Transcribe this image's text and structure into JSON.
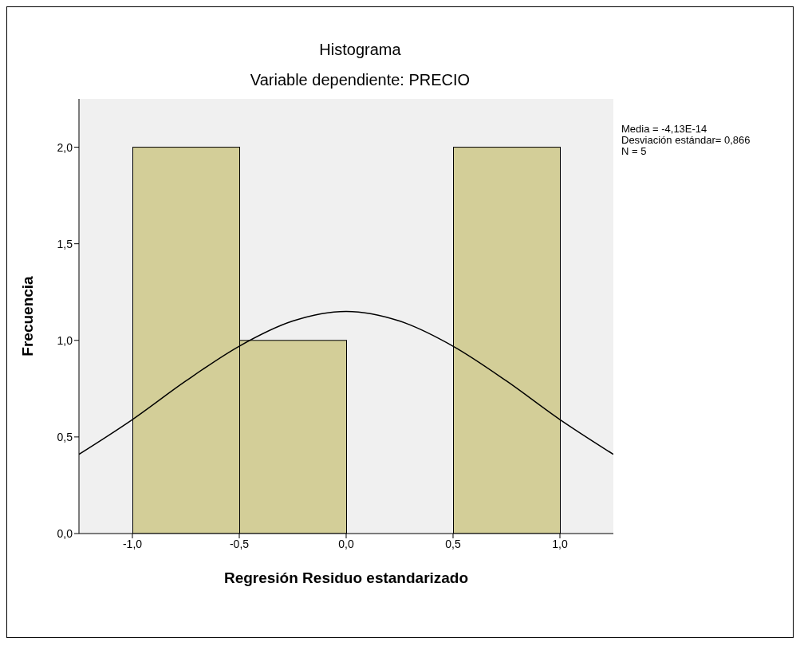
{
  "chart_data": {
    "type": "histogram",
    "title": "Histograma",
    "subtitle": "Variable dependiente: PRECIO",
    "xlabel": "Regresión Residuo estandarizado",
    "ylabel": "Frecuencia",
    "bins": [
      -1.0,
      -0.5,
      0.0,
      0.5,
      1.0
    ],
    "values": [
      2,
      1,
      0,
      2
    ],
    "color": "#d3ce98",
    "series": [
      {
        "type": "line",
        "color": "#000000",
        "x": [
          -1.25,
          -1.0,
          -0.75,
          -0.5,
          -0.25,
          0.0,
          0.25,
          0.5,
          0.75,
          1.0,
          1.25
        ],
        "values": [
          0.41,
          0.59,
          0.79,
          0.97,
          1.1,
          1.15,
          1.1,
          0.97,
          0.79,
          0.59,
          0.41
        ]
      }
    ],
    "xlim": [
      -1.25,
      1.25
    ],
    "xticks": [
      {
        "value": -1.0,
        "label": "-1,0"
      },
      {
        "value": -0.5,
        "label": "-0,5"
      },
      {
        "value": 0.0,
        "label": "0,0"
      },
      {
        "value": 0.5,
        "label": "0,5"
      },
      {
        "value": 1.0,
        "label": "1,0"
      }
    ],
    "ylim": [
      0,
      2.25
    ],
    "yticks": [
      {
        "value": 0,
        "label": "0,0"
      },
      {
        "value": 0.5,
        "label": "0,5"
      },
      {
        "value": 1.0,
        "label": "1,0"
      },
      {
        "value": 1.5,
        "label": "1,5"
      },
      {
        "value": 2.0,
        "label": "2,0"
      }
    ],
    "grid": false,
    "marker": "none",
    "annotations": [
      "Media = -4,13E-14",
      "Desviación estándar= 0,866",
      "N = 5"
    ]
  }
}
